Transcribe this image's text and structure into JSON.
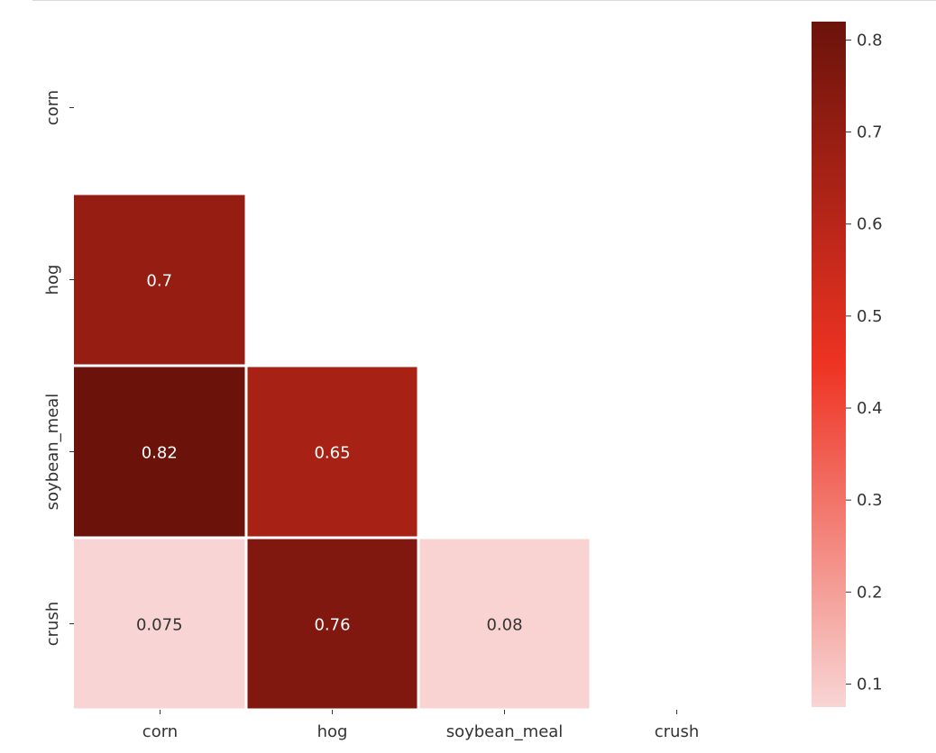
{
  "chart_data": {
    "type": "heatmap",
    "title": "",
    "xlabel": "",
    "ylabel": "",
    "x_labels": [
      "corn",
      "hog",
      "soybean_meal",
      "crush"
    ],
    "y_labels": [
      "corn",
      "hog",
      "soybean_meal",
      "crush"
    ],
    "mask": "upper-triangle-including-diagonal",
    "cells": [
      {
        "row": "hog",
        "col": "corn",
        "value": 0.7,
        "label": "0.7"
      },
      {
        "row": "soybean_meal",
        "col": "corn",
        "value": 0.82,
        "label": "0.82"
      },
      {
        "row": "soybean_meal",
        "col": "hog",
        "value": 0.65,
        "label": "0.65"
      },
      {
        "row": "crush",
        "col": "corn",
        "value": 0.075,
        "label": "0.075"
      },
      {
        "row": "crush",
        "col": "hog",
        "value": 0.76,
        "label": "0.76"
      },
      {
        "row": "crush",
        "col": "soybean_meal",
        "value": 0.08,
        "label": "0.08"
      }
    ],
    "colorbar": {
      "range": [
        0.075,
        0.82
      ],
      "ticks": [
        0.1,
        0.2,
        0.3,
        0.4,
        0.5,
        0.6,
        0.7,
        0.8
      ],
      "tick_labels": [
        "0.1",
        "0.2",
        "0.3",
        "0.4",
        "0.5",
        "0.6",
        "0.7",
        "0.8"
      ],
      "colormap": "light-pink to red to dark maroon",
      "colors": [
        "#f8d5d4",
        "#ee3322",
        "#6b130b"
      ],
      "placement": "right"
    },
    "cell_border_color": "#ffffff",
    "annotation_color": "#ffffff",
    "grid": false,
    "legend": "none"
  }
}
